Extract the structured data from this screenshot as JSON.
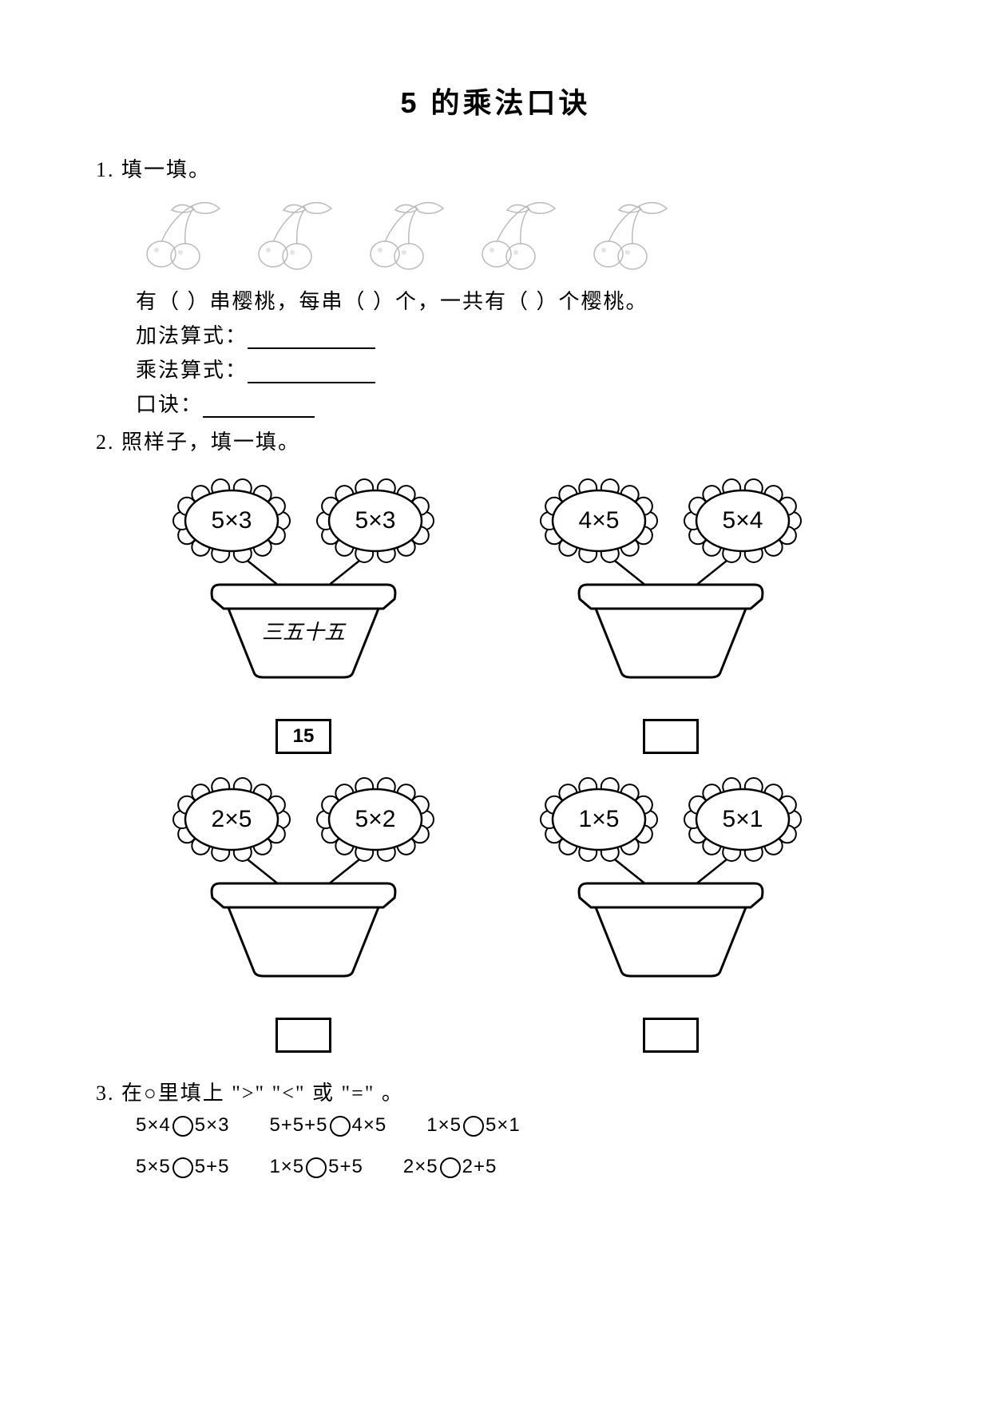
{
  "title": "5 的乘法口诀",
  "q1": {
    "num": "1.",
    "label": "填一填。",
    "cherry_count": 5,
    "sentence_parts": [
      "有（  ）串樱桃，每串（  ）个，一共有（  ）个樱桃。"
    ],
    "lines": {
      "addition": "加法算式：",
      "multiplication": "乘法算式：",
      "rhyme": "口诀："
    }
  },
  "q2": {
    "num": "2.",
    "label": "照样子，填一填。",
    "pots": [
      {
        "left": "5×3",
        "right": "5×3",
        "rhyme": "三五十五",
        "answer": "15"
      },
      {
        "left": "4×5",
        "right": "5×4",
        "rhyme": "",
        "answer": ""
      },
      {
        "left": "2×5",
        "right": "5×2",
        "rhyme": "",
        "answer": ""
      },
      {
        "left": "1×5",
        "right": "5×1",
        "rhyme": "",
        "answer": ""
      }
    ]
  },
  "q3": {
    "num": "3.",
    "label": "在○里填上 \">\" \"<\" 或 \"=\" 。",
    "rows": [
      [
        "5×4○5×3",
        "5+5+5○4×5",
        "1×5○5×1"
      ],
      [
        "5×5○5+5",
        "1×5○5+5",
        "2×5○2+5"
      ]
    ]
  },
  "style": {
    "page_bg": "#ffffff",
    "text_color": "#000000",
    "title_fontsize": 36,
    "body_fontsize": 26,
    "stroke": "#000000",
    "cherry_stroke": "#bbbbbb"
  }
}
